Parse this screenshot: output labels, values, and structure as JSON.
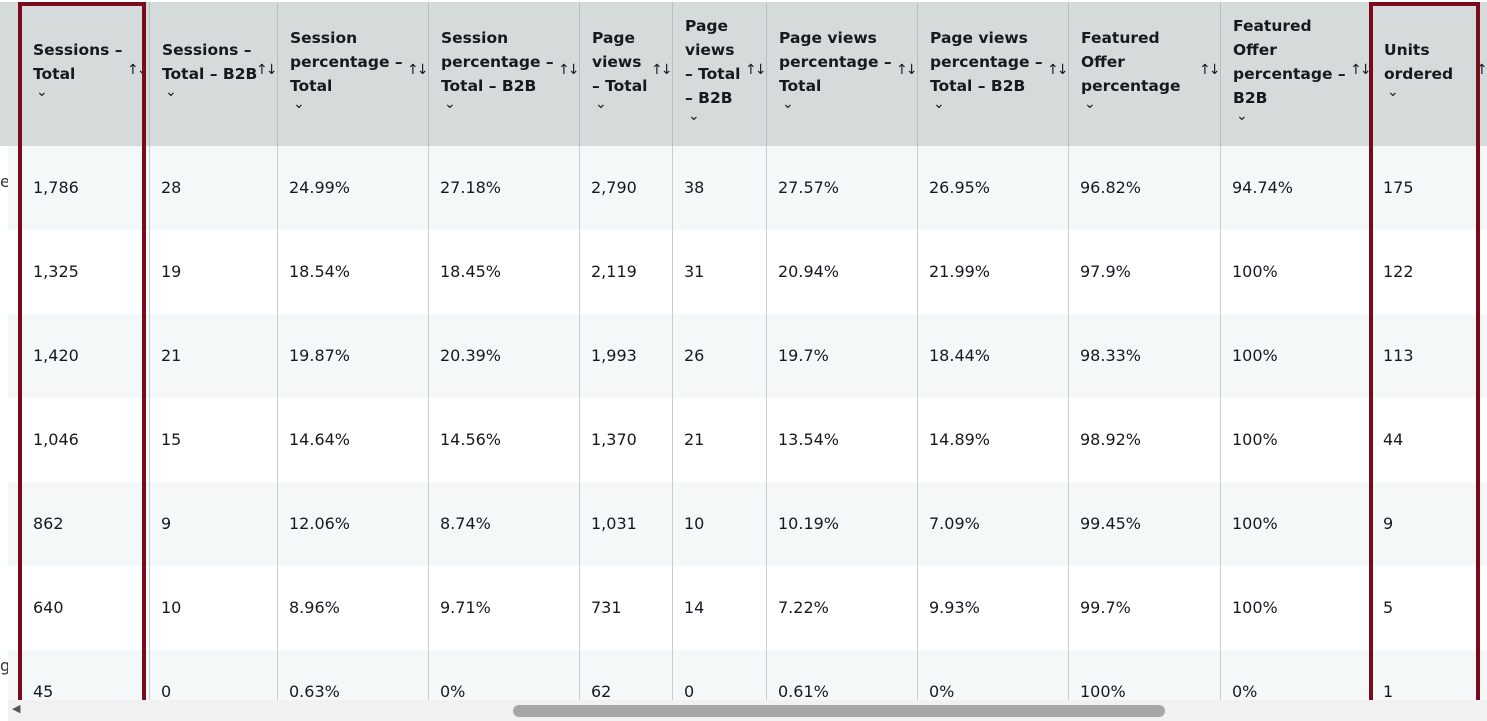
{
  "columns": [
    {
      "label": "Sessions –\nTotal"
    },
    {
      "label": "Sessions –\nTotal – B2B"
    },
    {
      "label": "Session\npercentage –\nTotal"
    },
    {
      "label": "Session\npercentage –\nTotal – B2B"
    },
    {
      "label": "Page\nviews\n– Total"
    },
    {
      "label": "Page\nviews\n– Total\n– B2B"
    },
    {
      "label": "Page views\npercentage –\nTotal"
    },
    {
      "label": "Page views\npercentage –\nTotal – B2B"
    },
    {
      "label": "Featured\nOffer\npercentage"
    },
    {
      "label": "Featured\nOffer\npercentage –\nB2B"
    },
    {
      "label": "Units\nordered"
    }
  ],
  "sort_glyph": "↑↓",
  "chevron_glyph": "⌄",
  "cut_glyphs": [
    "e",
    "g"
  ],
  "rows": [
    [
      "1,786",
      "28",
      "24.99%",
      "27.18%",
      "2,790",
      "38",
      "27.57%",
      "26.95%",
      "96.82%",
      "94.74%",
      "175"
    ],
    [
      "1,325",
      "19",
      "18.54%",
      "18.45%",
      "2,119",
      "31",
      "20.94%",
      "21.99%",
      "97.9%",
      "100%",
      "122"
    ],
    [
      "1,420",
      "21",
      "19.87%",
      "20.39%",
      "1,993",
      "26",
      "19.7%",
      "18.44%",
      "98.33%",
      "100%",
      "113"
    ],
    [
      "1,046",
      "15",
      "14.64%",
      "14.56%",
      "1,370",
      "21",
      "13.54%",
      "14.89%",
      "98.92%",
      "100%",
      "44"
    ],
    [
      "862",
      "9",
      "12.06%",
      "8.74%",
      "1,031",
      "10",
      "10.19%",
      "7.09%",
      "99.45%",
      "100%",
      "9"
    ],
    [
      "640",
      "10",
      "8.96%",
      "9.71%",
      "731",
      "14",
      "7.22%",
      "9.93%",
      "99.7%",
      "100%",
      "5"
    ],
    [
      "45",
      "0",
      "0.63%",
      "0%",
      "62",
      "0",
      "0.61%",
      "0%",
      "100%",
      "0%",
      "1"
    ]
  ],
  "scrollbar": {
    "left_arrow": "◀"
  }
}
